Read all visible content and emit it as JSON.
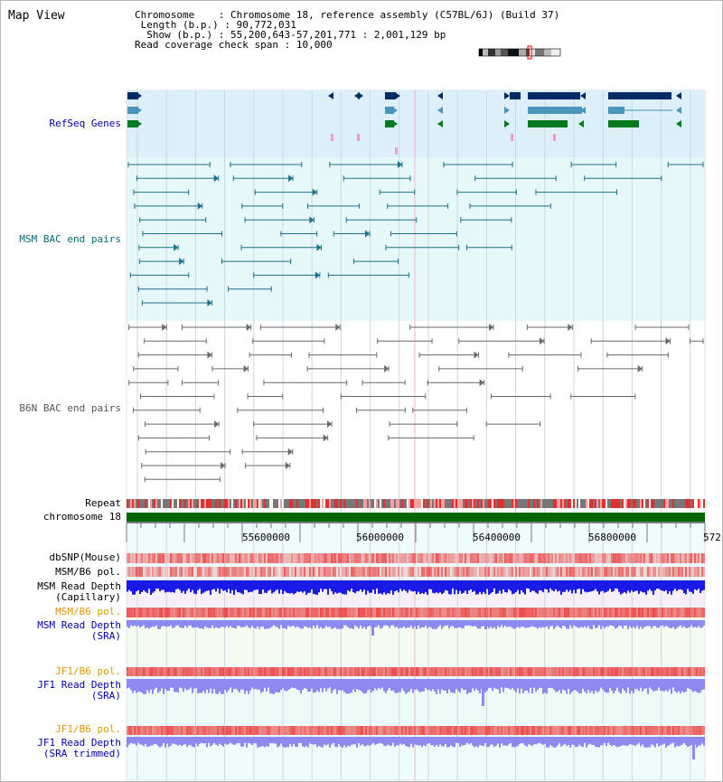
{
  "panel": {
    "title": "Map View"
  },
  "info": {
    "chromosome_key": "Chromosome",
    "chromosome_val": "Chromosome 18, reference assembly (C57BL/6J) (Build 37)",
    "length_key": "Length (b.p.)",
    "length_val": "90,772,031",
    "show_key": "Show (b.p.)",
    "show_val": "55,200,643-57,201,771 : 2,001,129 bp",
    "span_key": "Read coverage check span",
    "span_val": "10,000"
  },
  "tracks": {
    "refseq": "RefSeq Genes",
    "msm_bac": "MSM BAC end pairs",
    "b6n_bac": "B6N BAC end pairs",
    "repeat": "Repeat",
    "chromosome": "chromosome 18",
    "dbsnp": "dbSNP(Mouse)",
    "msm_pol": "MSM/B6 pol.",
    "msm_depth_cap_1": "MSM Read Depth",
    "msm_depth_cap_2": "(Capillary)",
    "msm_pol_2": "MSM/B6 pol.",
    "msm_depth_sra_1": "MSM Read Depth",
    "msm_depth_sra_2": "(SRA)",
    "jf1_pol": "JF1/B6 pol.",
    "jf1_depth_sra_1": "JF1 Read Depth",
    "jf1_depth_sra_2": "(SRA)",
    "jf1_pol_2": "JF1/B6 pol.",
    "jf1_depth_trim_1": "JF1 Read Depth",
    "jf1_depth_trim_2": "(SRA trimmed)"
  },
  "axis": {
    "ticks": [
      "55600000",
      "56000000",
      "56400000",
      "56800000",
      "572"
    ]
  },
  "colors": {
    "refseq_bg": "#ddf0fa",
    "msm_bg": "#e6f8fa",
    "lower_bg": "#eefcfc",
    "chromosome_bar": "#006600",
    "gene_dark": "#002b66",
    "gene_mid": "#4a95bb",
    "gene_green": "#007a1e",
    "msm_pair": "#1d6f8a",
    "b6n_pair": "#6a6a6a",
    "depth_dark": "#1a1ae6",
    "depth_light": "#8a8af0",
    "snp_red": "#e02020"
  }
}
